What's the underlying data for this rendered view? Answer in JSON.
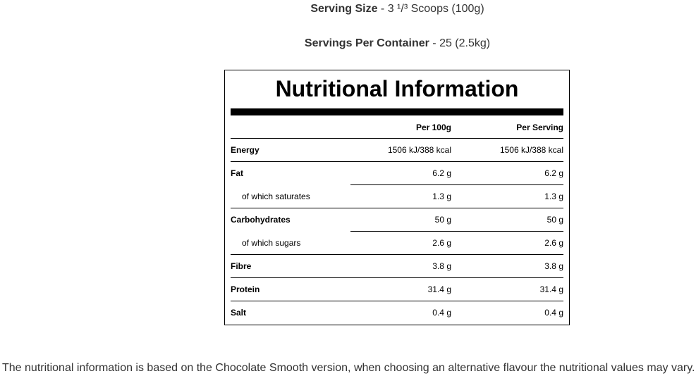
{
  "serving_size": {
    "label": "Serving Size",
    "value": " - 3 ¹/³ Scoops (100g)"
  },
  "servings_per_container": {
    "label": "Servings Per Container",
    "value": " - 25 (2.5kg)"
  },
  "table": {
    "title": "Nutritional Information",
    "columns": [
      "Per 100g",
      "Per Serving"
    ],
    "rows": [
      [
        "Energy",
        "1506 kJ/388 kcal",
        "1506 kJ/388 kcal"
      ],
      [
        "Fat",
        "6.2 g",
        "6.2 g"
      ],
      [
        "of which saturates",
        "1.3 g",
        "1.3 g"
      ],
      [
        "Carbohydrates",
        "50 g",
        "50 g"
      ],
      [
        "of which sugars",
        "2.6 g",
        "2.6 g"
      ],
      [
        "Fibre",
        "3.8 g",
        "3.8 g"
      ],
      [
        "Protein",
        "31.4 g",
        "31.4 g"
      ],
      [
        "Salt",
        "0.4 g",
        "0.4 g"
      ]
    ]
  },
  "footnote": "The nutritional information is based on the Chocolate Smooth version, when choosing an alternative flavour the nutritional values may vary."
}
